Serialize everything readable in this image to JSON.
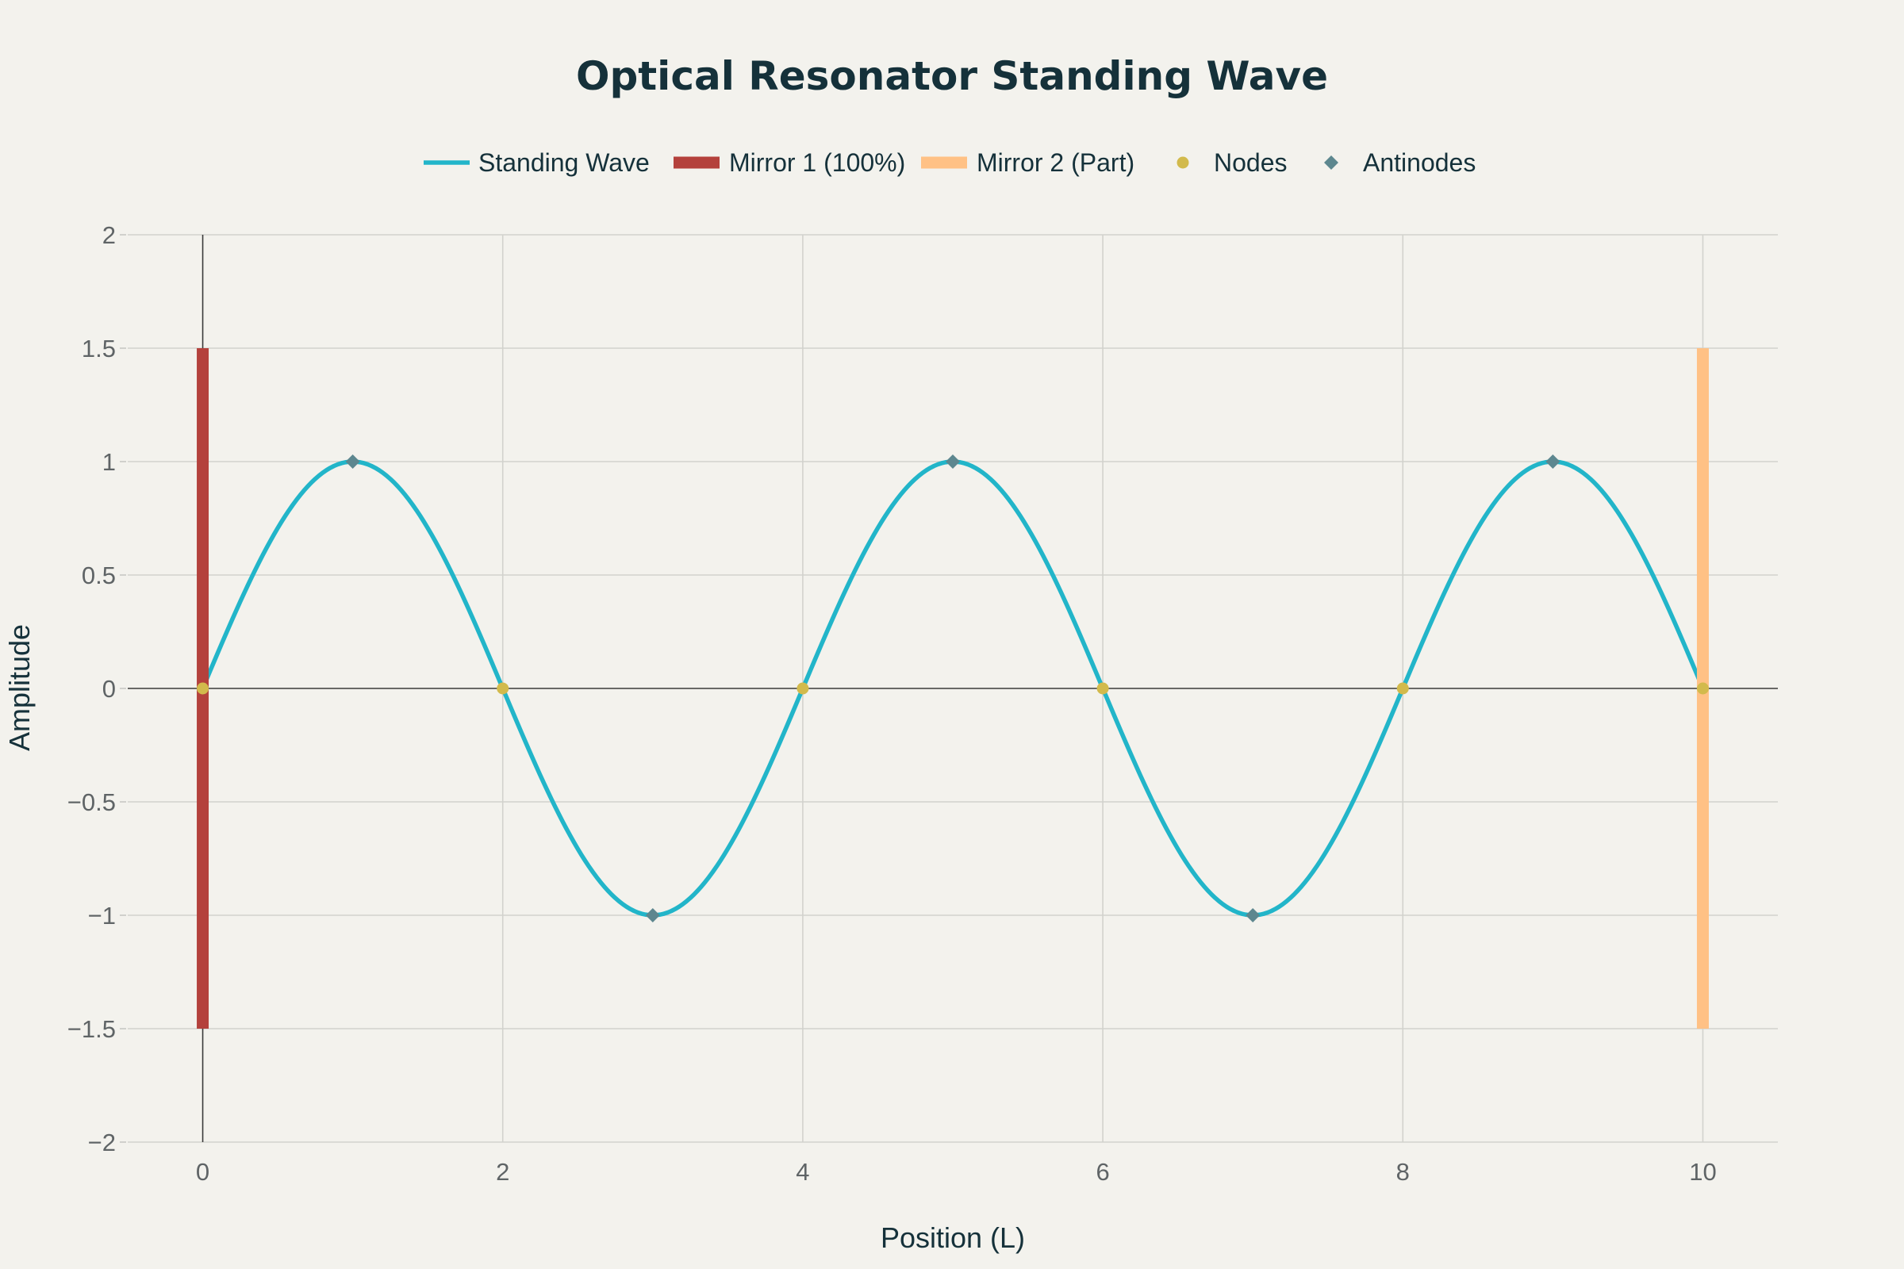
{
  "chart_data": {
    "type": "line",
    "title": "Optical Resonator Standing Wave",
    "xlabel": "Position (L)",
    "ylabel": "Amplitude",
    "xlim": [
      -0.5,
      10.5
    ],
    "ylim": [
      -2,
      2
    ],
    "x_ticks": [
      "0",
      "2",
      "4",
      "6",
      "8",
      "10"
    ],
    "x_tick_values": [
      0,
      2,
      4,
      6,
      8,
      10
    ],
    "y_ticks": [
      "2",
      "1.5",
      "1",
      "0.5",
      "0",
      "−0.5",
      "−1",
      "−1.5",
      "−2"
    ],
    "y_tick_values": [
      2,
      1.5,
      1,
      0.5,
      0,
      -0.5,
      -1,
      -1.5,
      -2
    ],
    "grid": true,
    "legend_position": "top-center",
    "series": [
      {
        "name": "Standing Wave",
        "kind": "line",
        "color": "#22b5c9",
        "function": "sin(pi*x/2)",
        "x": [
          0,
          0.25,
          0.5,
          0.75,
          1,
          1.25,
          1.5,
          1.75,
          2,
          2.25,
          2.5,
          2.75,
          3,
          3.25,
          3.5,
          3.75,
          4,
          4.25,
          4.5,
          4.75,
          5,
          5.25,
          5.5,
          5.75,
          6,
          6.25,
          6.5,
          6.75,
          7,
          7.25,
          7.5,
          7.75,
          8,
          8.25,
          8.5,
          8.75,
          9,
          9.25,
          9.5,
          9.75,
          10
        ],
        "y": [
          0,
          0.383,
          0.707,
          0.924,
          1,
          0.924,
          0.707,
          0.383,
          0,
          -0.383,
          -0.707,
          -0.924,
          -1,
          -0.924,
          -0.707,
          -0.383,
          0,
          0.383,
          0.707,
          0.924,
          1,
          0.924,
          0.707,
          0.383,
          0,
          -0.383,
          -0.707,
          -0.924,
          -1,
          -0.924,
          -0.707,
          -0.383,
          0,
          0.383,
          0.707,
          0.924,
          1,
          0.924,
          0.707,
          0.383,
          0
        ]
      },
      {
        "name": "Mirror 1 (100%)",
        "kind": "bar-vertical",
        "color": "#b4413c",
        "x": [
          0,
          0
        ],
        "y": [
          -1.5,
          1.5
        ]
      },
      {
        "name": "Mirror 2 (Part)",
        "kind": "bar-vertical",
        "color": "#ffc185",
        "x": [
          10,
          10
        ],
        "y": [
          -1.5,
          1.5
        ]
      },
      {
        "name": "Nodes",
        "kind": "scatter-circle",
        "color": "#d2ba4c",
        "x": [
          0,
          2,
          4,
          6,
          8,
          10
        ],
        "y": [
          0,
          0,
          0,
          0,
          0,
          0
        ]
      },
      {
        "name": "Antinodes",
        "kind": "scatter-diamond",
        "color": "#5d878f",
        "x": [
          1,
          3,
          5,
          7,
          9
        ],
        "y": [
          1,
          -1,
          1,
          -1,
          1
        ]
      }
    ]
  }
}
